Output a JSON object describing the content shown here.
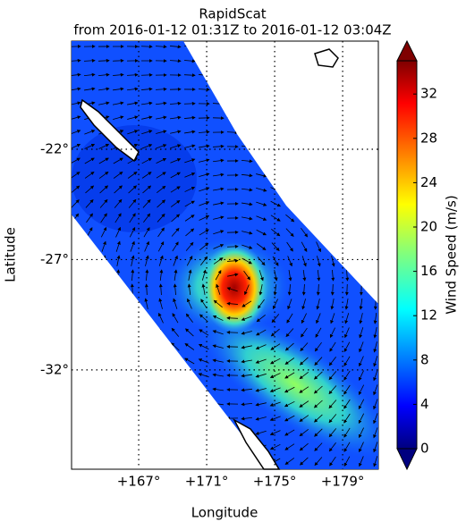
{
  "chart_data": {
    "type": "map",
    "title": "RapidScat",
    "subtitle": "from 2016-01-12 01:31Z to 2016-01-12 03:04Z",
    "x_label": "Longitude",
    "y_label": "Latitude",
    "xlim": [
      163.05,
      181.1
    ],
    "ylim": [
      -36.5,
      -17.1
    ],
    "xticks": [
      {
        "value": 167,
        "label": "+167°"
      },
      {
        "value": 171,
        "label": "+171°"
      },
      {
        "value": 175,
        "label": "+175°"
      },
      {
        "value": 179,
        "label": "+179°"
      }
    ],
    "yticks": [
      {
        "value": -22,
        "label": "-22°"
      },
      {
        "value": -27,
        "label": "-27°"
      },
      {
        "value": -32,
        "label": "-32°"
      }
    ],
    "grid": true,
    "colorbar": {
      "label": "Wind Speed (m/s)",
      "lim": [
        0,
        35
      ],
      "ticks": [
        0,
        4,
        8,
        12,
        16,
        20,
        24,
        28,
        32
      ]
    }
  }
}
